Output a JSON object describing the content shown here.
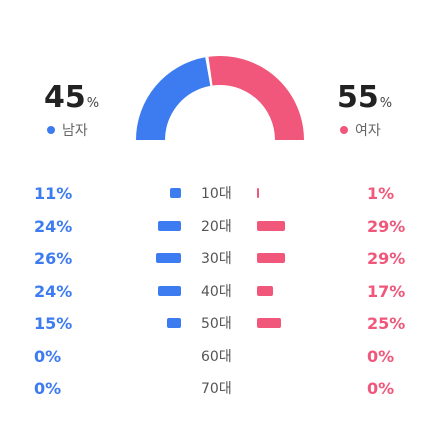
{
  "summary": {
    "male": {
      "value": "45",
      "unit": "%",
      "label": "남자",
      "color": "#3c7bf0"
    },
    "female": {
      "value": "55",
      "unit": "%",
      "label": "여자",
      "color": "#f0577a"
    }
  },
  "gauge": {
    "male_fraction": 0.45,
    "female_fraction": 0.55
  },
  "age_rows": [
    {
      "age": "10대",
      "male": "11%",
      "female": "1%",
      "male_value": 11,
      "female_value": 1
    },
    {
      "age": "20대",
      "male": "24%",
      "female": "29%",
      "male_value": 24,
      "female_value": 29
    },
    {
      "age": "30대",
      "male": "26%",
      "female": "29%",
      "male_value": 26,
      "female_value": 29
    },
    {
      "age": "40대",
      "male": "24%",
      "female": "17%",
      "male_value": 24,
      "female_value": 17
    },
    {
      "age": "50대",
      "male": "15%",
      "female": "25%",
      "male_value": 15,
      "female_value": 25
    },
    {
      "age": "60대",
      "male": "0%",
      "female": "0%",
      "male_value": 0,
      "female_value": 0
    },
    {
      "age": "70대",
      "male": "0%",
      "female": "0%",
      "male_value": 0,
      "female_value": 0
    }
  ]
}
